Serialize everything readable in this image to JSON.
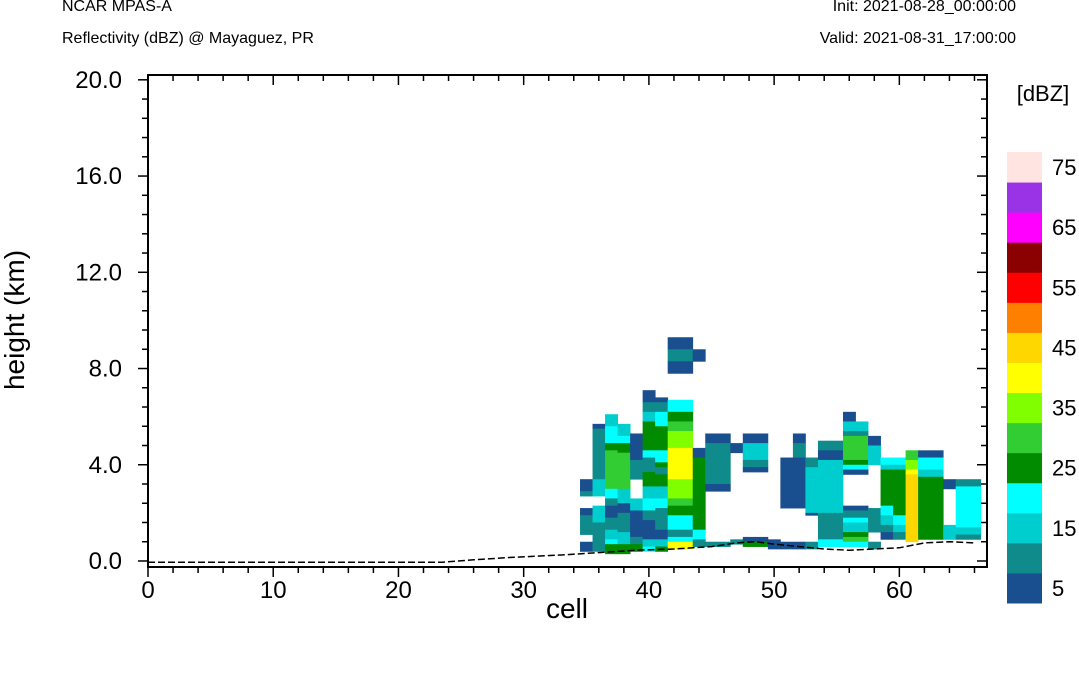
{
  "header": {
    "model": "NCAR MPAS-A",
    "field": "Reflectivity (dBZ) @ Mayaguez, PR",
    "init": "Init: 2021-08-28_00:00:00",
    "valid": "Valid: 2021-08-31_17:00:00"
  },
  "chart_data": {
    "type": "heatmap",
    "title": "",
    "xlabel": "cell",
    "ylabel": "height (km)",
    "xlim": [
      0,
      67
    ],
    "ylim": [
      -0.25,
      20.2
    ],
    "x_ticks": [
      "0",
      "10",
      "20",
      "30",
      "40",
      "50",
      "60"
    ],
    "y_ticks": [
      "0.0",
      "4.0",
      "8.0",
      "12.0",
      "16.0",
      "20.0"
    ],
    "colorbar": {
      "title": "[dBZ]",
      "labels": [
        "5",
        "15",
        "25",
        "35",
        "45",
        "55",
        "65",
        "75"
      ],
      "levels": [
        5,
        10,
        15,
        20,
        25,
        30,
        35,
        40,
        45,
        50,
        55,
        60,
        65,
        70,
        75
      ],
      "colors": [
        "#1a4f8f",
        "#0f8b8b",
        "#00cdcd",
        "#00ffff",
        "#008b00",
        "#32cd32",
        "#7fff00",
        "#ffff00",
        "#ffd700",
        "#ff7f00",
        "#ff0000",
        "#8b0000",
        "#ff00ff",
        "#9a32e6",
        "#ffe4e1"
      ]
    },
    "terrain": [
      [
        0,
        -0.05
      ],
      [
        23.5,
        -0.05
      ],
      [
        26,
        0.05
      ],
      [
        29,
        0.15
      ],
      [
        33,
        0.25
      ],
      [
        36,
        0.35
      ],
      [
        39,
        0.45
      ],
      [
        42,
        0.5
      ],
      [
        45,
        0.6
      ],
      [
        47,
        0.75
      ],
      [
        48.5,
        0.8
      ],
      [
        50,
        0.7
      ],
      [
        52,
        0.6
      ],
      [
        54,
        0.5
      ],
      [
        56,
        0.45
      ],
      [
        58,
        0.5
      ],
      [
        60,
        0.55
      ],
      [
        62,
        0.75
      ],
      [
        64,
        0.8
      ],
      [
        66,
        0.75
      ]
    ],
    "cells": [
      {
        "x": 35,
        "bands": [
          [
            2.9,
            3.4,
            5
          ],
          [
            2.7,
            2.9,
            10
          ],
          [
            1.9,
            2.2,
            5
          ],
          [
            1.1,
            1.9,
            10
          ],
          [
            0.4,
            0.8,
            5
          ]
        ]
      },
      {
        "x": 36,
        "bands": [
          [
            5.5,
            5.7,
            5
          ],
          [
            3.4,
            5.5,
            10
          ],
          [
            2.7,
            3.4,
            15
          ],
          [
            1.6,
            2.3,
            15
          ],
          [
            0.4,
            1.6,
            10
          ]
        ]
      },
      {
        "x": 37,
        "bands": [
          [
            5.6,
            6.1,
            15
          ],
          [
            4.9,
            5.6,
            20
          ],
          [
            4.6,
            4.9,
            25
          ],
          [
            3.0,
            4.6,
            30
          ],
          [
            2.6,
            3.0,
            20
          ],
          [
            2.3,
            2.6,
            10
          ],
          [
            1.8,
            2.3,
            5
          ],
          [
            1.3,
            1.8,
            10
          ],
          [
            0.9,
            1.3,
            15
          ],
          [
            0.7,
            0.9,
            20
          ],
          [
            0.3,
            0.7,
            25
          ]
        ]
      },
      {
        "x": 38,
        "bands": [
          [
            5.2,
            5.7,
            15
          ],
          [
            4.9,
            5.2,
            20
          ],
          [
            4.5,
            4.9,
            25
          ],
          [
            3.0,
            4.5,
            30
          ],
          [
            2.4,
            3.0,
            15
          ],
          [
            2.0,
            2.4,
            5
          ],
          [
            1.2,
            2.0,
            10
          ],
          [
            0.7,
            1.2,
            15
          ],
          [
            0.3,
            0.7,
            25
          ]
        ]
      },
      {
        "x": 39,
        "bands": [
          [
            4.2,
            5.3,
            5
          ],
          [
            3.4,
            4.2,
            10
          ],
          [
            2.1,
            2.6,
            15
          ],
          [
            1.0,
            2.1,
            5
          ],
          [
            0.7,
            1.0,
            10
          ],
          [
            0.4,
            0.7,
            25
          ]
        ]
      },
      {
        "x": 40,
        "bands": [
          [
            6.6,
            7.1,
            5
          ],
          [
            6.2,
            6.6,
            10
          ],
          [
            5.8,
            6.2,
            15
          ],
          [
            4.6,
            5.8,
            25
          ],
          [
            4.3,
            4.6,
            20
          ],
          [
            3.7,
            4.3,
            10
          ],
          [
            3.1,
            3.7,
            25
          ],
          [
            2.6,
            3.1,
            15
          ],
          [
            2.1,
            2.6,
            20
          ],
          [
            1.7,
            2.1,
            10
          ],
          [
            0.9,
            1.7,
            5
          ],
          [
            0.6,
            0.9,
            15
          ],
          [
            0.4,
            0.6,
            20
          ]
        ]
      },
      {
        "x": 41,
        "bands": [
          [
            6.6,
            6.8,
            5
          ],
          [
            6.2,
            6.6,
            10
          ],
          [
            5.6,
            6.2,
            20
          ],
          [
            4.6,
            5.6,
            25
          ],
          [
            4.1,
            4.6,
            20
          ],
          [
            3.9,
            4.1,
            25
          ],
          [
            3.6,
            3.9,
            10
          ],
          [
            3.1,
            3.6,
            25
          ],
          [
            2.6,
            3.1,
            15
          ],
          [
            2.2,
            2.6,
            20
          ],
          [
            1.3,
            2.2,
            10
          ],
          [
            0.9,
            1.3,
            5
          ],
          [
            0.6,
            0.9,
            15
          ],
          [
            0.4,
            0.6,
            25
          ]
        ]
      },
      {
        "x": 42,
        "bands": [
          [
            8.8,
            9.3,
            5
          ],
          [
            8.3,
            8.8,
            10
          ],
          [
            7.8,
            8.3,
            5
          ],
          [
            6.2,
            6.7,
            20
          ],
          [
            5.8,
            6.2,
            25
          ],
          [
            5.4,
            5.8,
            30
          ],
          [
            4.7,
            5.4,
            35
          ],
          [
            3.4,
            4.7,
            40
          ],
          [
            2.6,
            3.4,
            35
          ],
          [
            2.3,
            2.6,
            30
          ],
          [
            1.9,
            2.3,
            25
          ],
          [
            1.3,
            1.9,
            20
          ],
          [
            1.0,
            1.3,
            10
          ],
          [
            0.8,
            1.0,
            20
          ],
          [
            0.5,
            0.8,
            40
          ]
        ]
      },
      {
        "x": 43,
        "bands": [
          [
            8.8,
            9.3,
            5
          ],
          [
            8.3,
            8.8,
            10
          ],
          [
            7.8,
            8.3,
            5
          ],
          [
            6.2,
            6.7,
            20
          ],
          [
            5.8,
            6.2,
            25
          ],
          [
            5.4,
            5.8,
            30
          ],
          [
            4.7,
            5.4,
            35
          ],
          [
            3.4,
            4.7,
            40
          ],
          [
            2.6,
            3.4,
            35
          ],
          [
            2.3,
            2.6,
            30
          ],
          [
            1.9,
            2.3,
            25
          ],
          [
            1.3,
            1.9,
            20
          ],
          [
            1.0,
            1.3,
            10
          ],
          [
            0.8,
            1.0,
            20
          ],
          [
            0.5,
            0.8,
            40
          ]
        ]
      },
      {
        "x": 44,
        "bands": [
          [
            8.3,
            8.8,
            5
          ],
          [
            4.3,
            4.7,
            5
          ],
          [
            2.7,
            4.3,
            25
          ],
          [
            1.3,
            2.7,
            25
          ],
          [
            0.9,
            1.3,
            20
          ],
          [
            0.6,
            0.9,
            10
          ]
        ]
      },
      {
        "x": 45,
        "bands": [
          [
            4.9,
            5.3,
            5
          ],
          [
            4.5,
            4.9,
            10
          ],
          [
            3.2,
            4.5,
            10
          ],
          [
            2.9,
            3.2,
            5
          ],
          [
            0.6,
            0.8,
            10
          ]
        ]
      },
      {
        "x": 46,
        "bands": [
          [
            4.9,
            5.3,
            5
          ],
          [
            4.5,
            4.9,
            10
          ],
          [
            3.2,
            4.5,
            10
          ],
          [
            2.9,
            3.2,
            5
          ],
          [
            0.6,
            0.8,
            10
          ]
        ]
      },
      {
        "x": 47,
        "bands": [
          [
            4.5,
            4.9,
            5
          ],
          [
            0.7,
            0.9,
            10
          ]
        ]
      },
      {
        "x": 48,
        "bands": [
          [
            4.9,
            5.3,
            5
          ],
          [
            4.2,
            4.9,
            15
          ],
          [
            3.9,
            4.2,
            10
          ],
          [
            3.7,
            3.9,
            5
          ],
          [
            0.8,
            1.0,
            5
          ],
          [
            0.6,
            0.8,
            25
          ]
        ]
      },
      {
        "x": 49,
        "bands": [
          [
            4.9,
            5.3,
            5
          ],
          [
            4.2,
            4.9,
            15
          ],
          [
            3.9,
            4.2,
            10
          ],
          [
            3.7,
            3.9,
            5
          ],
          [
            0.8,
            1.0,
            5
          ],
          [
            0.6,
            0.8,
            25
          ]
        ]
      },
      {
        "x": 50,
        "bands": [
          [
            0.5,
            0.9,
            5
          ]
        ]
      },
      {
        "x": 51,
        "bands": [
          [
            2.2,
            4.3,
            5
          ],
          [
            0.5,
            0.8,
            5
          ]
        ]
      },
      {
        "x": 52,
        "bands": [
          [
            4.9,
            5.3,
            5
          ],
          [
            4.3,
            4.9,
            10
          ],
          [
            2.2,
            4.3,
            5
          ],
          [
            0.5,
            0.8,
            5
          ]
        ]
      },
      {
        "x": 53,
        "bands": [
          [
            3.9,
            4.3,
            10
          ],
          [
            2.0,
            3.9,
            15
          ],
          [
            1.9,
            2.0,
            5
          ],
          [
            0.5,
            0.8,
            10
          ]
        ]
      },
      {
        "x": 54,
        "bands": [
          [
            4.6,
            5.0,
            10
          ],
          [
            4.2,
            4.6,
            5
          ],
          [
            3.6,
            4.2,
            15
          ],
          [
            2.0,
            3.6,
            15
          ],
          [
            0.9,
            2.0,
            10
          ],
          [
            0.6,
            0.9,
            20
          ]
        ]
      },
      {
        "x": 55,
        "bands": [
          [
            4.6,
            5.0,
            10
          ],
          [
            4.2,
            4.6,
            5
          ],
          [
            3.6,
            4.2,
            15
          ],
          [
            2.0,
            3.6,
            15
          ],
          [
            0.9,
            2.0,
            10
          ],
          [
            0.6,
            0.9,
            20
          ]
        ]
      },
      {
        "x": 56,
        "bands": [
          [
            5.8,
            6.2,
            5
          ],
          [
            5.4,
            5.8,
            15
          ],
          [
            5.2,
            5.4,
            10
          ],
          [
            4.2,
            5.2,
            30
          ],
          [
            4.0,
            4.2,
            25
          ],
          [
            3.8,
            4.0,
            20
          ],
          [
            3.6,
            3.8,
            5
          ],
          [
            2.1,
            2.3,
            5
          ],
          [
            1.8,
            2.1,
            10
          ],
          [
            1.6,
            1.8,
            20
          ],
          [
            1.2,
            1.6,
            15
          ],
          [
            1.0,
            1.2,
            25
          ],
          [
            0.8,
            1.0,
            30
          ],
          [
            0.6,
            0.8,
            20
          ]
        ]
      },
      {
        "x": 57,
        "bands": [
          [
            5.4,
            5.8,
            15
          ],
          [
            5.2,
            5.4,
            10
          ],
          [
            4.2,
            5.2,
            30
          ],
          [
            4.0,
            4.2,
            25
          ],
          [
            3.8,
            4.0,
            20
          ],
          [
            3.6,
            3.8,
            5
          ],
          [
            2.1,
            2.3,
            5
          ],
          [
            1.8,
            2.1,
            10
          ],
          [
            1.6,
            1.8,
            20
          ],
          [
            1.2,
            1.6,
            15
          ],
          [
            1.0,
            1.2,
            25
          ],
          [
            0.8,
            1.0,
            30
          ],
          [
            0.6,
            0.8,
            20
          ]
        ]
      },
      {
        "x": 58,
        "bands": [
          [
            4.8,
            5.2,
            5
          ],
          [
            4.0,
            4.8,
            15
          ],
          [
            1.2,
            2.2,
            10
          ],
          [
            0.5,
            0.8,
            10
          ]
        ]
      },
      {
        "x": 59,
        "bands": [
          [
            4.0,
            4.3,
            20
          ],
          [
            3.8,
            4.0,
            15
          ],
          [
            2.3,
            3.8,
            25
          ],
          [
            1.9,
            2.3,
            20
          ],
          [
            1.5,
            1.9,
            15
          ],
          [
            1.2,
            1.5,
            10
          ],
          [
            0.9,
            1.2,
            5
          ]
        ]
      },
      {
        "x": 60,
        "bands": [
          [
            4.0,
            4.3,
            20
          ],
          [
            3.8,
            4.0,
            15
          ],
          [
            1.9,
            3.8,
            25
          ],
          [
            1.5,
            1.9,
            20
          ],
          [
            1.2,
            1.5,
            15
          ],
          [
            0.9,
            1.2,
            10
          ]
        ]
      },
      {
        "x": 61,
        "bands": [
          [
            4.2,
            4.6,
            30
          ],
          [
            3.8,
            4.2,
            35
          ],
          [
            3.6,
            3.8,
            40
          ],
          [
            0.8,
            3.6,
            45
          ]
        ]
      },
      {
        "x": 62,
        "bands": [
          [
            4.3,
            4.6,
            5
          ],
          [
            3.8,
            4.3,
            20
          ],
          [
            3.5,
            3.8,
            15
          ],
          [
            0.9,
            3.5,
            25
          ]
        ]
      },
      {
        "x": 63,
        "bands": [
          [
            4.3,
            4.6,
            5
          ],
          [
            3.8,
            4.3,
            20
          ],
          [
            3.5,
            3.8,
            15
          ],
          [
            0.9,
            3.5,
            25
          ]
        ]
      },
      {
        "x": 64,
        "bands": [
          [
            3.0,
            3.4,
            5
          ],
          [
            0.9,
            1.5,
            15
          ]
        ]
      },
      {
        "x": 65,
        "bands": [
          [
            3.1,
            3.4,
            10
          ],
          [
            1.4,
            3.1,
            20
          ],
          [
            1.1,
            1.4,
            15
          ],
          [
            0.9,
            1.1,
            10
          ]
        ]
      },
      {
        "x": 66,
        "bands": [
          [
            3.1,
            3.4,
            10
          ],
          [
            1.4,
            3.1,
            20
          ],
          [
            1.1,
            1.4,
            15
          ],
          [
            0.9,
            1.1,
            10
          ]
        ]
      }
    ]
  }
}
